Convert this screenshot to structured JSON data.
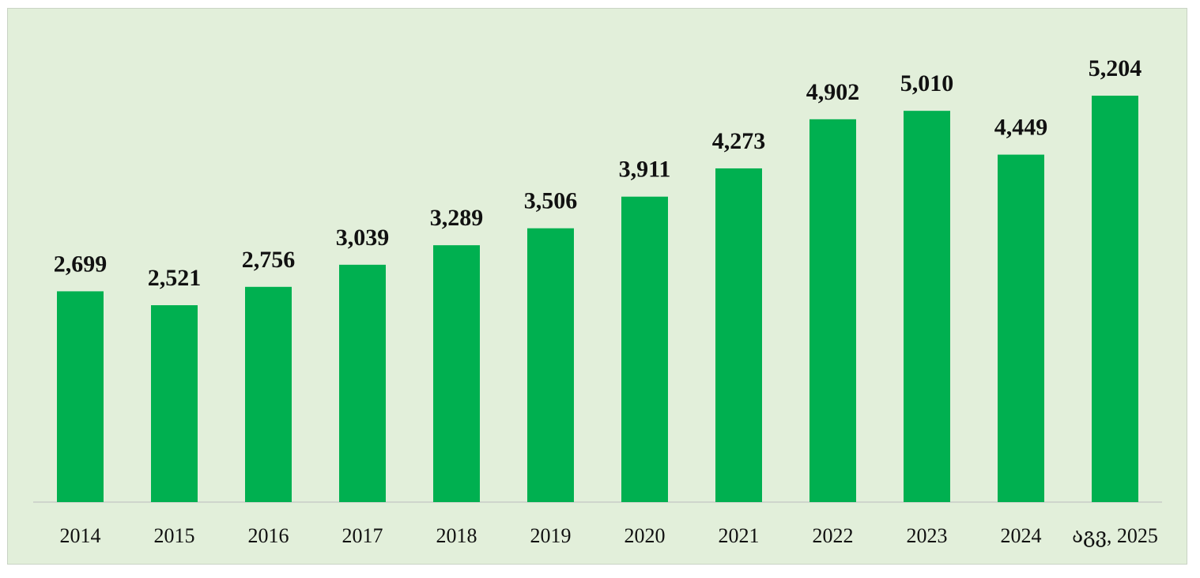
{
  "chart_data": {
    "type": "bar",
    "title": "",
    "xlabel": "",
    "ylabel": "",
    "categories": [
      "2014",
      "2015",
      "2016",
      "2017",
      "2018",
      "2019",
      "2020",
      "2021",
      "2022",
      "2023",
      "2024",
      "აგვ, 2025"
    ],
    "value_labels": [
      "2,699",
      "2,521",
      "2,756",
      "3,039",
      "3,289",
      "3,506",
      "3,911",
      "4,273",
      "4,902",
      "5,010",
      "4,449",
      "5,204"
    ],
    "values": [
      2699,
      2521,
      2756,
      3039,
      3289,
      3506,
      3911,
      4273,
      4902,
      5010,
      4449,
      5204
    ],
    "ylim": [
      0,
      5204
    ],
    "grid": false,
    "legend": "none",
    "colors": {
      "bar": "#00b050",
      "background": "#e2efda",
      "baseline": "#cfd5cc",
      "text": "#111111"
    }
  }
}
